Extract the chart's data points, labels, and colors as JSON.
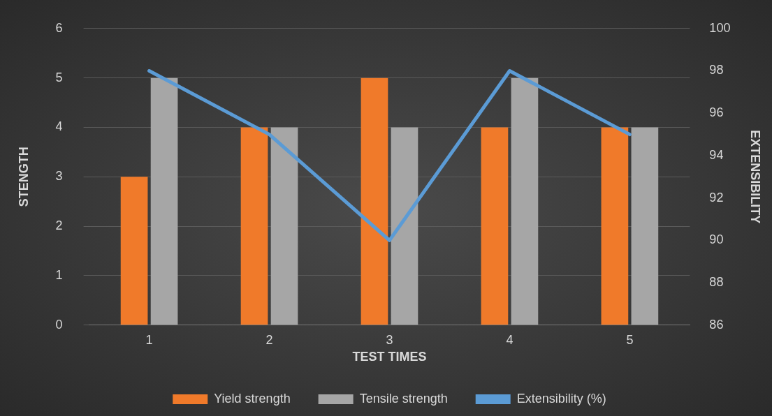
{
  "chart_data": {
    "type": "bar",
    "xlabel": "TEST TIMES",
    "ylabel": "STENGTH",
    "y2label": "EXTENSIBILITY",
    "categories": [
      "1",
      "2",
      "3",
      "4",
      "5"
    ],
    "series": [
      {
        "name": "Yield strength",
        "color": "#f07a2a",
        "values": [
          3,
          4,
          5,
          4,
          4
        ]
      },
      {
        "name": "Tensile strength",
        "color": "#a6a6a6",
        "values": [
          5,
          4,
          4,
          5,
          4
        ]
      },
      {
        "name": "Extensibility (%)",
        "type": "line",
        "axis": "y2",
        "color": "#5b9bd5",
        "values": [
          98,
          95,
          90,
          98,
          95
        ]
      }
    ],
    "ylim": [
      0,
      6
    ],
    "yticks": [
      0,
      1,
      2,
      3,
      4,
      5,
      6
    ],
    "y2lim": [
      86,
      100
    ],
    "y2ticks": [
      86,
      88,
      90,
      92,
      94,
      96,
      98,
      100
    ],
    "grid": "y",
    "legend": "bottom",
    "marker": "none"
  }
}
